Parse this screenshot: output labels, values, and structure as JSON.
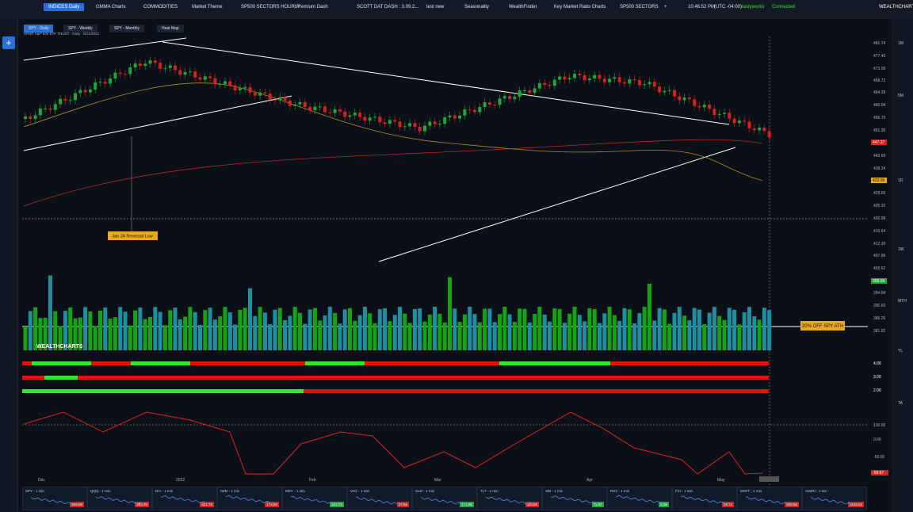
{
  "top_tabs": [
    "INDICES Daily",
    "GMMA Charts",
    "COMMODITIES",
    "Market Theme",
    "SP500 SECTORS HOURLY",
    "Premium Dash",
    "SCOTT DAT DASH : 3.09.2...",
    "test new",
    "Seasonality",
    "WealthFinder",
    "Key Market Ratio Charts",
    "SP500 SECTORS",
    "+"
  ],
  "status": {
    "time": "10:46:52 PM",
    "timezone": "(UTC -04:00)",
    "broker": "tastyworks",
    "connection": "Connected",
    "brand": "WEALTHCHARTS"
  },
  "sub_tabs": [
    "SPY - Daily",
    "SPY - Weekly",
    "SPY - Monthly",
    "Heat Map"
  ],
  "chart_header": "SPDR S&P 500 ETF TRUST - Daily - 5/11/2022",
  "price_axis": [
    "481.74",
    "477.40",
    "473.06",
    "468.72",
    "464.38",
    "460.04",
    "455.70",
    "451.36",
    "442.69",
    "438.34",
    "429.66",
    "425.32",
    "420.98",
    "416.64",
    "412.30",
    "407.96",
    "403.62",
    "394.94",
    "390.60",
    "386.26",
    "381.92"
  ],
  "price_flags": {
    "red": "447.37",
    "yellow": "433.99",
    "green": "399.09"
  },
  "annotations": {
    "reversal": "Jan 24 Reversal Low",
    "ath": "20% OFF SPY ATH",
    "watermark": "WEALTHCHARTS"
  },
  "indicator_axis": [
    "4.00",
    "3.00",
    "2.00"
  ],
  "oscillator_axis": [
    "100.00",
    "0.00",
    "-50.00"
  ],
  "oscillator_flag": "-58.67",
  "timeframes": [
    "1M",
    "5M",
    "1D",
    "1W",
    "MTH",
    "YL",
    "TA"
  ],
  "date_axis": [
    "Dec",
    "2022",
    "Feb",
    "Mar",
    "Apr",
    "May"
  ],
  "tickers": [
    {
      "symbol": "SPY - 1 min",
      "price": "399.09"
    },
    {
      "symbol": "QQQ - 1 min",
      "price": "303.70"
    },
    {
      "symbol": "DIA - 1 min",
      "price": "321.78"
    },
    {
      "symbol": "IWM - 1 min",
      "price": "174.80"
    },
    {
      "symbol": "MDY - 1 min",
      "price": "426.73"
    },
    {
      "symbol": "VXX - 1 min",
      "price": "27.65"
    },
    {
      "symbol": "GLD - 1 min",
      "price": "172.86"
    },
    {
      "symbol": "TLT - 1 min",
      "price": "115.65"
    },
    {
      "symbol": "XBI - 1 min",
      "price": "72.57"
    },
    {
      "symbol": "RSX - 1 min",
      "price": "6.35"
    },
    {
      "symbol": "FXI - 1 min",
      "price": "29.72"
    },
    {
      "symbol": "MSFT - 1 min",
      "price": "260.55"
    },
    {
      "symbol": "AMZN - 1 min",
      "price": "2133.23"
    }
  ]
}
